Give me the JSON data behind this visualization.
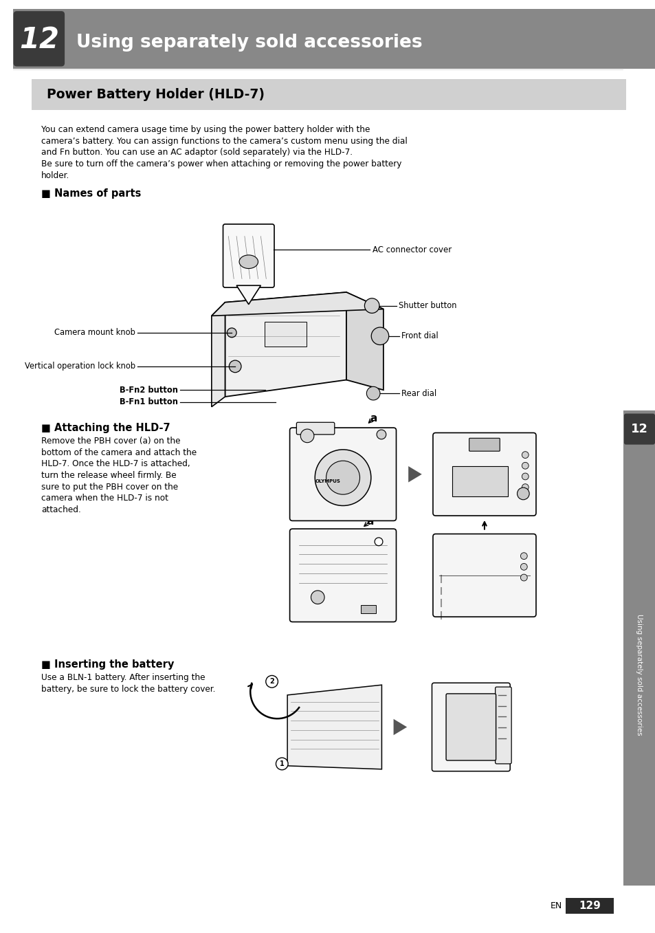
{
  "page_bg": "#ffffff",
  "header_bg": "#888888",
  "header_dark_bg": "#3a3a3a",
  "header_text": "Using separately sold accessories",
  "header_number": "12",
  "section_box_bg": "#d0d0d0",
  "section_title": "Power Battery Holder (HLD-7)",
  "body_lines": [
    "You can extend camera usage time by using the power battery holder with the",
    "camera’s battery. You can assign functions to the camera’s custom menu using the dial",
    "and Fn button. You can use an AC adaptor (sold separately) via the HLD-7.",
    "Be sure to turn off the camera’s power when attaching or removing the power battery",
    "holder."
  ],
  "names_title": "■ Names of parts",
  "label_ac": "AC connector cover",
  "label_camera_mount": "Camera mount knob",
  "label_vertical": "Vertical operation lock knob",
  "label_bfn2": "B-Fn2 button",
  "label_bfn1": "B-Fn1 button",
  "label_shutter": "Shutter button",
  "label_front_dial": "Front dial",
  "label_rear_dial": "Rear dial",
  "attach_title": "■ Attaching the HLD-7",
  "attach_lines": [
    "Remove the PBH cover (a) on the",
    "bottom of the camera and attach the",
    "HLD-7. Once the HLD-7 is attached,",
    "turn the release wheel firmly. Be",
    "sure to put the PBH cover on the",
    "camera when the HLD-7 is not",
    "attached."
  ],
  "battery_title": "■ Inserting the battery",
  "battery_lines": [
    "Use a BLN-1 battery. After inserting the",
    "battery, be sure to lock the battery cover."
  ],
  "sidebar_text": "Using separately sold accessories",
  "sidebar_number": "12",
  "page_number": "129",
  "text_color": "#000000",
  "lw": 1.2
}
